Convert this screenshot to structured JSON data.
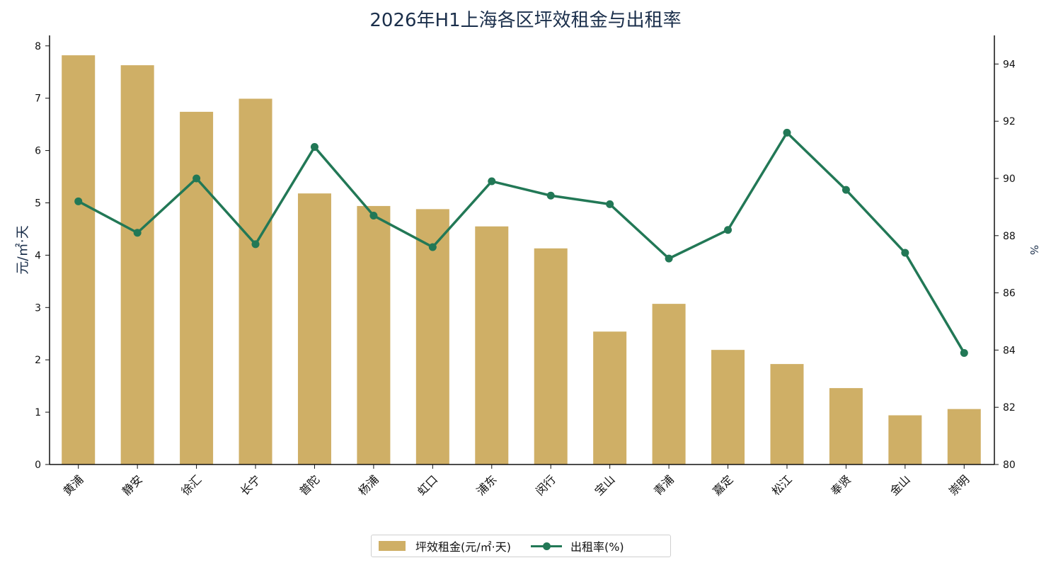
{
  "chart_data": {
    "type": "bar",
    "title": "2026年H1上海各区坪效租金与出租率",
    "categories": [
      "黄浦",
      "静安",
      "徐汇",
      "长宁",
      "普陀",
      "杨浦",
      "虹口",
      "浦东",
      "闵行",
      "宝山",
      "青浦",
      "嘉定",
      "松江",
      "奉贤",
      "金山",
      "崇明"
    ],
    "ylabel": "元/㎡·天",
    "y2label": "%",
    "ylim": [
      0,
      8.2
    ],
    "y2lim": [
      80,
      95
    ],
    "yticks": [
      "0",
      "1",
      "2",
      "3",
      "4",
      "5",
      "6",
      "7",
      "8"
    ],
    "y2ticks": [
      "80",
      "82",
      "84",
      "86",
      "88",
      "90",
      "92",
      "94"
    ],
    "series": [
      {
        "name": "坪效租金(元/㎡·天)",
        "type": "bar",
        "axis": "left",
        "color": "#cfaf66",
        "values": [
          7.82,
          7.63,
          6.74,
          6.99,
          5.18,
          4.94,
          4.88,
          4.55,
          4.13,
          2.54,
          3.07,
          2.19,
          1.92,
          1.46,
          0.94,
          1.06
        ]
      },
      {
        "name": "出租率(%)",
        "type": "line",
        "axis": "right",
        "color": "#227856",
        "values": [
          89.2,
          88.1,
          90.0,
          87.7,
          91.1,
          88.7,
          87.6,
          89.9,
          89.4,
          89.1,
          87.2,
          88.2,
          91.6,
          89.6,
          87.4,
          83.9
        ]
      }
    ],
    "grid": false,
    "legend_position": "bottom-center"
  }
}
